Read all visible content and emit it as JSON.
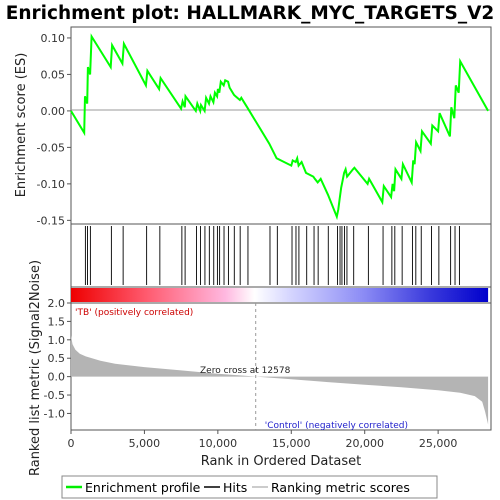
{
  "chart_data": {
    "type": "line",
    "title": "Enrichment plot: HALLMARK_MYC_TARGETS_V2",
    "panels": {
      "enrichment": {
        "ylabel": "Enrichment score (ES)",
        "ylim": [
          -0.155,
          0.115
        ],
        "yticks": [
          "0.10",
          "0.05",
          "0.00",
          "-0.05",
          "-0.10",
          "-0.15"
        ],
        "ytick_values": [
          0.1,
          0.05,
          0.0,
          -0.05,
          -0.1,
          -0.15
        ],
        "series": [
          {
            "name": "Enrichment profile",
            "color": "#00ff00",
            "x": [
              0,
              900,
              950,
              1100,
              1150,
              1300,
              1400,
              2700,
              2800,
              3500,
              3600,
              5100,
              5200,
              6000,
              6100,
              7500,
              7600,
              7750,
              7800,
              8500,
              8600,
              8800,
              8850,
              9100,
              9200,
              9400,
              9500,
              9700,
              9800,
              9950,
              10000,
              10100,
              10200,
              10400,
              10500,
              10700,
              10800,
              11100,
              11200,
              11500,
              11600,
              12000,
              13500,
              14000,
              15000,
              15100,
              15300,
              15400,
              15500,
              15700,
              16000,
              16500,
              16600,
              16800,
              17000,
              17500,
              18100,
              18200,
              18300,
              18400,
              18500,
              18600,
              18700,
              18800,
              19200,
              19300,
              20200,
              20300,
              21200,
              21300,
              21800,
              21900,
              22000,
              22100,
              22500,
              22600,
              23200,
              23300,
              23400,
              23500,
              23800,
              23900,
              24500,
              24600,
              25000,
              25100,
              25800,
              25900,
              26100,
              26200,
              26400,
              26500,
              28400
            ],
            "y": [
              0.0,
              -0.03,
              0.02,
              0.01,
              0.06,
              0.05,
              0.102,
              0.06,
              0.09,
              0.065,
              0.092,
              0.035,
              0.055,
              0.03,
              0.045,
              0.003,
              0.013,
              0.005,
              0.02,
              0.0,
              0.01,
              0.0,
              0.008,
              0.0,
              0.018,
              0.01,
              0.02,
              0.012,
              0.025,
              0.02,
              0.03,
              0.025,
              0.04,
              0.035,
              0.042,
              0.04,
              0.032,
              0.022,
              0.02,
              0.015,
              0.018,
              0.005,
              -0.045,
              -0.065,
              -0.075,
              -0.068,
              -0.07,
              -0.065,
              -0.075,
              -0.07,
              -0.085,
              -0.09,
              -0.093,
              -0.098,
              -0.093,
              -0.115,
              -0.145,
              -0.135,
              -0.12,
              -0.105,
              -0.095,
              -0.085,
              -0.08,
              -0.09,
              -0.08,
              -0.078,
              -0.1,
              -0.093,
              -0.125,
              -0.103,
              -0.118,
              -0.1,
              -0.11,
              -0.08,
              -0.093,
              -0.073,
              -0.098,
              -0.068,
              -0.073,
              -0.043,
              -0.055,
              -0.028,
              -0.045,
              -0.02,
              -0.028,
              -0.003,
              -0.035,
              0.005,
              -0.01,
              0.035,
              0.025,
              0.068,
              0.0
            ]
          }
        ]
      },
      "hits": {
        "name": "Hits",
        "positions": [
          980,
          1120,
          1320,
          2750,
          3550,
          5150,
          6050,
          7550,
          7770,
          8550,
          8820,
          9120,
          9420,
          9720,
          9970,
          10120,
          10420,
          10720,
          11120,
          11520,
          12050,
          13550,
          14050,
          15050,
          15320,
          15520,
          16050,
          16550,
          16830,
          17520,
          18150,
          18320,
          18450,
          18620,
          18790,
          19250,
          20250,
          21250,
          21850,
          22050,
          22550,
          23250,
          23480,
          23850,
          24550,
          25050,
          25850,
          26150,
          26450
        ]
      },
      "ranked_metric": {
        "name": "Ranking metric scores",
        "ylabel": "Ranked list metric (Signal2Noise)",
        "xlabel": "Rank in Ordered Dataset",
        "ylim": [
          -1.45,
          2.0
        ],
        "yticks": [
          "2.0",
          "1.5",
          "1.0",
          "0.5",
          "0.0",
          "-0.5",
          "-1.0"
        ],
        "ytick_values": [
          2.0,
          1.5,
          1.0,
          0.5,
          0.0,
          -0.5,
          -1.0
        ],
        "xticks": [
          "0",
          "5,000",
          "10,000",
          "15,000",
          "20,000",
          "25,000"
        ],
        "xtick_values": [
          0,
          5000,
          10000,
          15000,
          20000,
          25000
        ],
        "x": [
          0,
          100,
          300,
          600,
          1000,
          2000,
          3000,
          5000,
          7500,
          10000,
          12578,
          15000,
          17500,
          20000,
          22500,
          25000,
          26500,
          27500,
          28000,
          28200,
          28400
        ],
        "y": [
          1.12,
          0.88,
          0.73,
          0.62,
          0.55,
          0.43,
          0.35,
          0.26,
          0.17,
          0.08,
          0.0,
          -0.07,
          -0.15,
          -0.22,
          -0.29,
          -0.37,
          -0.44,
          -0.53,
          -0.68,
          -0.95,
          -1.3
        ]
      },
      "heat_bar": {
        "colors": [
          "#ff0000",
          "#ffffff",
          "#0000ff"
        ]
      }
    },
    "xlim": [
      0,
      28600
    ],
    "annotations": {
      "positive": "'TB' (positively correlated)",
      "negative": "'Control' (negatively correlated)",
      "zero_cross": "Zero cross at 12578",
      "zero_cross_rank": 12578
    },
    "legend": {
      "placement": "bottom",
      "items": [
        "Enrichment profile",
        "Hits",
        "Ranking metric scores"
      ]
    }
  }
}
